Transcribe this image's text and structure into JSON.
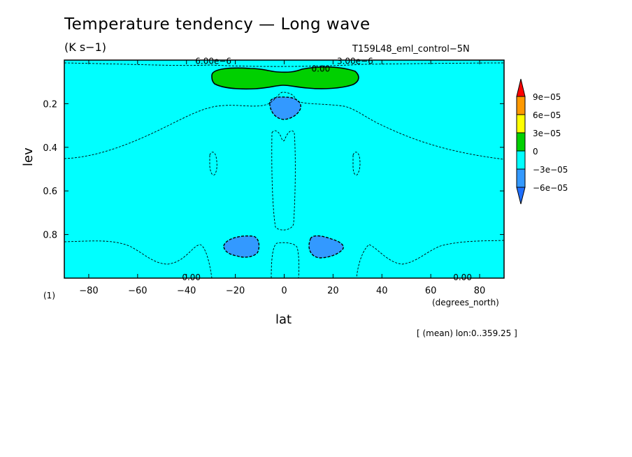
{
  "header": {
    "title": "Temperature tendency — Long wave",
    "units": "(K s−1)",
    "run_name": "T159L48_eml_control−5N"
  },
  "footer": {
    "page_id": "(1)",
    "x_units": "(degrees_north)",
    "x_label": "lat",
    "y_label": "lev",
    "averaging": "[ (mean) lon:0..359.25 ]"
  },
  "colors": {
    "background_fill": "#00ffff",
    "green": "#00d000",
    "blue": "#3399ff",
    "yellow": "#ffff00",
    "orange": "#ff9900",
    "red": "#ff0000",
    "dark_blue": "#1f6fff"
  },
  "chart_data": {
    "type": "contour",
    "title": "Temperature tendency — Long wave",
    "subtitle": "(K s−1)",
    "xlabel": "lat",
    "ylabel": "lev",
    "xlim": [
      -90,
      90
    ],
    "ylim": [
      1.0,
      0.0
    ],
    "x_ticks": [
      -80,
      -60,
      -40,
      -20,
      0,
      20,
      40,
      60,
      80
    ],
    "x_tick_labels": [
      "−80",
      "−60",
      "−40",
      "−20",
      "0",
      "20",
      "40",
      "60",
      "80"
    ],
    "y_ticks": [
      0.2,
      0.4,
      0.6,
      0.8
    ],
    "y_tick_labels": [
      "0.2",
      "0.4",
      "0.6",
      "0.8"
    ],
    "contour_labels": [
      {
        "text": "6.00e−6",
        "lat": -29,
        "lev": 0.005
      },
      {
        "text": "0.00",
        "lat": 15,
        "lev": 0.04
      },
      {
        "text": "3.00e−6",
        "lat": 29,
        "lev": 0.005
      },
      {
        "text": "0.00",
        "lat": -38,
        "lev": 0.997
      },
      {
        "text": "0.00",
        "lat": 73,
        "lev": 0.997
      }
    ],
    "filled_regions": [
      {
        "name": "upper positive band",
        "class": "0 to 3e-05",
        "lat_range": [
          -29,
          30
        ],
        "lev_range": [
          0.04,
          0.12
        ]
      },
      {
        "name": "upper equatorial minimum",
        "class": "-6e-05 to -3e-05",
        "lat_range": [
          -6,
          7
        ],
        "lev_range": [
          0.17,
          0.27
        ]
      },
      {
        "name": "lower minimum south",
        "class": "-6e-05 to -3e-05",
        "lat_range": [
          -25,
          -10
        ],
        "lev_range": [
          0.79,
          0.9
        ]
      },
      {
        "name": "lower minimum north",
        "class": "-6e-05 to -3e-05",
        "lat_range": [
          10,
          25
        ],
        "lev_range": [
          0.79,
          0.9
        ]
      }
    ],
    "colorbar": {
      "labels": [
        "9e−05",
        "6e−05",
        "3e−05",
        "0",
        "−3e−05",
        "−6e−05"
      ],
      "levels": [
        9e-05,
        6e-05,
        3e-05,
        0,
        -3e-05,
        -6e-05
      ]
    }
  }
}
